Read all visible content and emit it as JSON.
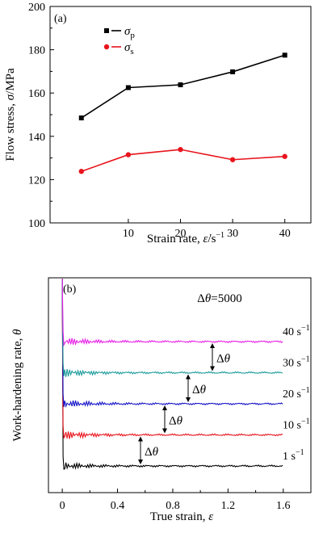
{
  "chart_data": [
    {
      "type": "line",
      "panel_label": "(a)",
      "xlabel_prefix": "Strain rate, ",
      "xlabel_symbol": "ε̇",
      "xlabel_unit": "/s",
      "xlabel_exp": "−1",
      "ylabel_prefix": "Flow stress, ",
      "ylabel_symbol": "σ",
      "ylabel_suffix": "/MPa",
      "xlim": [
        -5,
        45
      ],
      "ylim": [
        100,
        200
      ],
      "xticks": [
        "10",
        "20",
        "30",
        "40"
      ],
      "xtick_values": [
        10,
        20,
        30,
        40
      ],
      "yticks": [
        "100",
        "120",
        "140",
        "160",
        "180",
        "200"
      ],
      "ytick_values": [
        100,
        120,
        140,
        160,
        180,
        200
      ],
      "x": [
        1,
        10,
        20,
        30,
        40
      ],
      "legend_position": "top-left",
      "grid": false,
      "series": [
        {
          "name": "σ",
          "subscript": "p",
          "color": "#000000",
          "marker": "square",
          "values": [
            148.5,
            162.5,
            163.8,
            169.8,
            177.5
          ]
        },
        {
          "name": "σ",
          "subscript": "s",
          "color": "#e8141c",
          "marker": "circle",
          "values": [
            123.8,
            131.5,
            133.9,
            129.2,
            130.7
          ]
        }
      ]
    },
    {
      "type": "line",
      "panel_label": "(b)",
      "xlabel_prefix": "True strain, ",
      "xlabel_symbol": "ε",
      "ylabel_prefix": "Work-hardening rate, ",
      "ylabel_symbol": "θ",
      "xlim": [
        -0.1,
        1.8
      ],
      "xticks": [
        "0",
        "0.4",
        "0.8",
        "1.2",
        "1.6"
      ],
      "xtick_values": [
        0,
        0.4,
        0.8,
        1.2,
        1.6
      ],
      "offset_note": "Δθ=5000",
      "delta_label": "Δθ",
      "grid": false,
      "series": [
        {
          "name": "1 s",
          "exp": "−1",
          "color": "#000000",
          "level": 0.0
        },
        {
          "name": "10 s",
          "exp": "−1",
          "color": "#e8141c",
          "level": 1.0
        },
        {
          "name": "20 s",
          "exp": "−1",
          "color": "#1414c8",
          "level": 2.0
        },
        {
          "name": "30 s",
          "exp": "−1",
          "color": "#1e9c9c",
          "level": 3.0
        },
        {
          "name": "40 s",
          "exp": "−1",
          "color": "#e61ee6",
          "level": 4.0
        }
      ]
    }
  ]
}
